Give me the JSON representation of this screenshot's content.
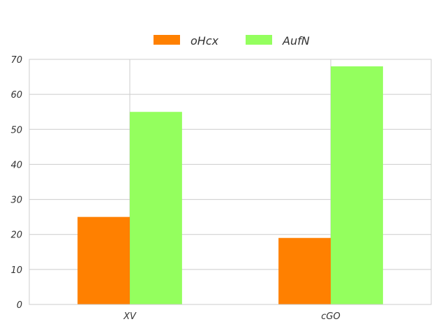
{
  "chart_data": {
    "type": "bar",
    "categories": [
      "XV",
      "cGO"
    ],
    "series": [
      {
        "name": "oHcx",
        "values": [
          25,
          19
        ],
        "color": "#ff8000"
      },
      {
        "name": "AufN",
        "values": [
          55,
          68
        ],
        "color": "#94ff5e"
      }
    ],
    "ylim": [
      0,
      70
    ],
    "yticks": [
      0,
      10,
      20,
      30,
      40,
      50,
      60,
      70
    ],
    "grid": true,
    "legend": "top-center",
    "title": "",
    "xlabel": "",
    "ylabel": ""
  }
}
